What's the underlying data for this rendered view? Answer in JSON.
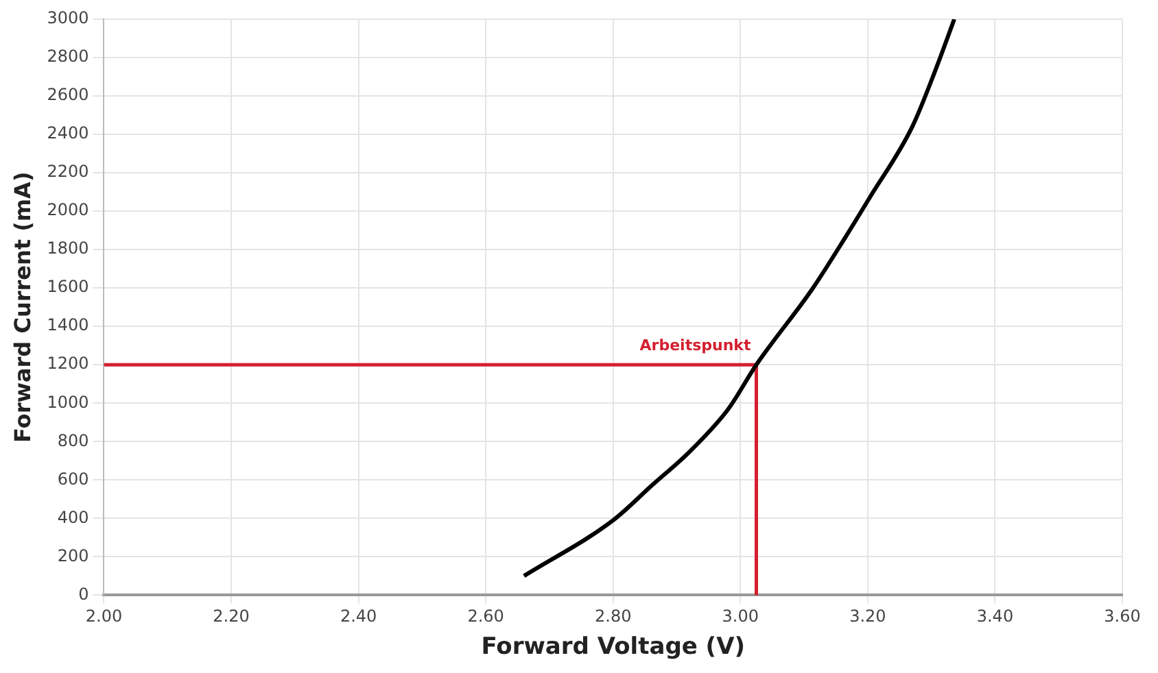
{
  "chart_data": {
    "type": "line",
    "xlabel": "Forward Voltage (V)",
    "ylabel": "Forward Current (mA)",
    "series": [
      {
        "color": "#000000",
        "x": [
          2.66,
          2.8,
          2.862,
          2.921,
          2.981,
          3.025,
          3.114,
          3.166,
          3.203,
          3.27,
          3.307,
          3.336
        ],
        "values": [
          100,
          390,
          575,
          750,
          970,
          1200,
          1600,
          1870,
          2070,
          2440,
          2740,
          3000
        ]
      },
      {
        "color": "#d42030",
        "x": [
          2.0,
          3.025,
          3.025
        ],
        "values": [
          1200,
          1200,
          0
        ]
      }
    ],
    "annotations": [
      {
        "text": "Arbeitspunkt",
        "x": 3.025,
        "y": 1200
      }
    ],
    "xlim": [
      2.0,
      3.6
    ],
    "xticks": [
      {
        "value": 2.0,
        "label": "2.00"
      },
      {
        "value": 2.2,
        "label": "2.20"
      },
      {
        "value": 2.4,
        "label": "2.40"
      },
      {
        "value": 2.6,
        "label": "2.60"
      },
      {
        "value": 2.8,
        "label": "2.80"
      },
      {
        "value": 3.0,
        "label": "3.00"
      },
      {
        "value": 3.2,
        "label": "3.20"
      },
      {
        "value": 3.4,
        "label": "3.40"
      },
      {
        "value": 3.6,
        "label": "3.60"
      }
    ],
    "ylim": [
      0,
      3000
    ],
    "yticks": [
      0,
      200,
      400,
      600,
      800,
      1000,
      1200,
      1400,
      1600,
      1800,
      2000,
      2200,
      2400,
      2600,
      2800,
      3000
    ],
    "grid": true,
    "legend": false,
    "marker": "none",
    "line_style": "solid"
  }
}
